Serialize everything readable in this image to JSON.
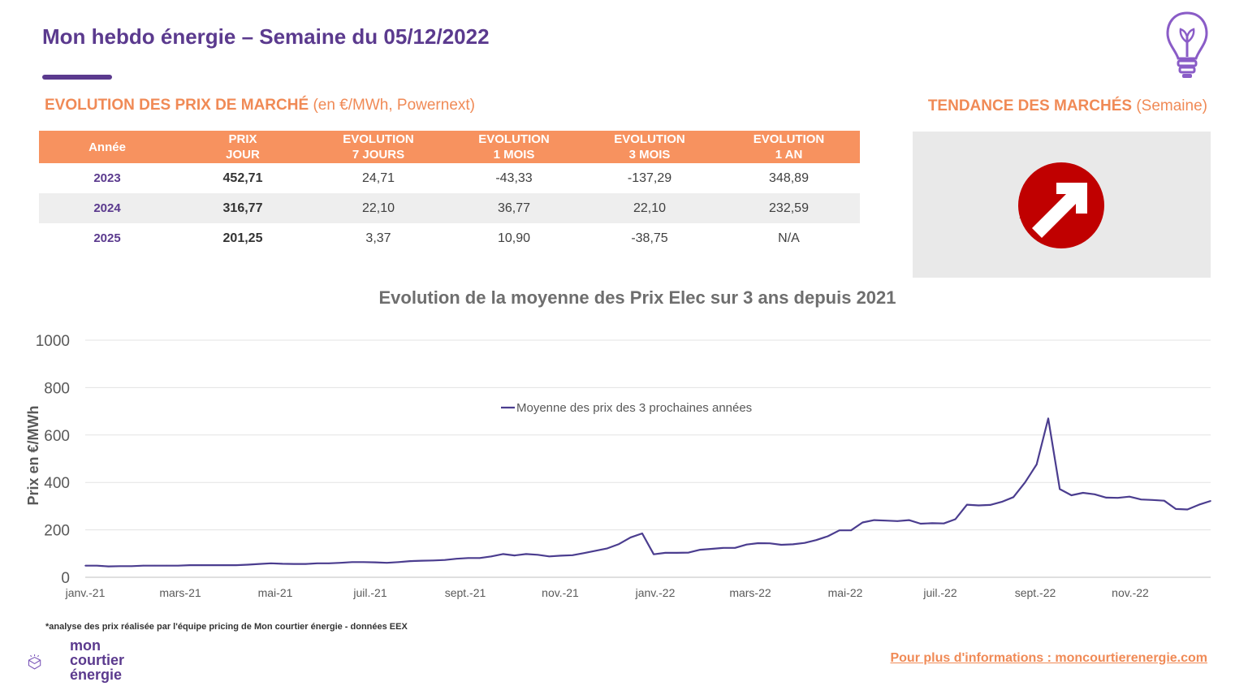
{
  "header": {
    "title": "Mon hebdo énergie – Semaine du 05/12/2022"
  },
  "prices_section": {
    "title": "EVOLUTION DES PRIX DE MARCHÉ",
    "subtitle": "(en €/MWh, Powernext)",
    "columns": [
      {
        "l1": "Année",
        "l2": ""
      },
      {
        "l1": "PRIX",
        "l2": "JOUR"
      },
      {
        "l1": "EVOLUTION",
        "l2": "7 JOURS"
      },
      {
        "l1": "EVOLUTION",
        "l2": "1 MOIS"
      },
      {
        "l1": "EVOLUTION",
        "l2": "3 MOIS"
      },
      {
        "l1": "EVOLUTION",
        "l2": "1 AN"
      }
    ],
    "rows": [
      [
        "2023",
        "452,71",
        "24,71",
        "-43,33",
        "-137,29",
        "348,89"
      ],
      [
        "2024",
        "316,77",
        "22,10",
        "36,77",
        "22,10",
        "232,59"
      ],
      [
        "2025",
        "201,25",
        "3,37",
        "10,90",
        "-38,75",
        "N/A"
      ]
    ]
  },
  "trend_section": {
    "title": "TENDANCE DES MARCHÉS",
    "subtitle": "(Semaine)",
    "trend": "up",
    "icon": "trend-up-arrow-icon",
    "icon_color": "#c00000"
  },
  "chart_data": {
    "type": "line",
    "title": "Evolution de la moyenne des Prix Elec sur 3 ans depuis 2021",
    "xlabel": "",
    "ylabel": "Prix en €/MWh",
    "ylim": [
      0,
      1000
    ],
    "yticks": [
      0,
      200,
      400,
      600,
      800,
      1000
    ],
    "grid": true,
    "legend_position": "top-center",
    "x_tick_labels": [
      "janv.-21",
      "mars-21",
      "mai-21",
      "juil.-21",
      "sept.-21",
      "nov.-21",
      "janv.-22",
      "mars-22",
      "mai-22",
      "juil.-22",
      "sept.-22",
      "nov.-22"
    ],
    "series": [
      {
        "name": "Moyenne des prix des 3 prochaines années",
        "color": "#4b3d8f",
        "values": [
          49,
          49,
          46,
          47,
          47,
          49,
          49,
          49,
          49,
          51,
          51,
          51,
          51,
          51,
          53,
          56,
          59,
          57,
          56,
          56,
          59,
          59,
          61,
          64,
          64,
          63,
          61,
          64,
          68,
          70,
          71,
          73,
          78,
          81,
          81,
          88,
          98,
          92,
          98,
          95,
          88,
          91,
          93,
          102,
          112,
          122,
          140,
          168,
          185,
          97,
          103,
          103,
          104,
          116,
          120,
          124,
          124,
          138,
          144,
          143,
          137,
          139,
          145,
          157,
          173,
          198,
          198,
          231,
          241,
          239,
          237,
          241,
          226,
          228,
          227,
          245,
          306,
          303,
          305,
          318,
          338,
          400,
          476,
          670,
          372,
          346,
          356,
          350,
          336,
          335,
          340,
          328,
          326,
          323,
          288,
          286,
          306,
          322
        ]
      }
    ]
  },
  "footer": {
    "footnote": "*analyse des prix réalisée par l'équipe pricing de Mon courtier énergie -  données EEX",
    "logo_lines": [
      "mon",
      "courtier",
      "énergie"
    ],
    "more_info": "Pour plus d'informations : moncourtierenergie.com"
  },
  "colors": {
    "brand_purple": "#5b3a8e",
    "accent_orange": "#f7925f",
    "line_color": "#4b3d8f"
  }
}
